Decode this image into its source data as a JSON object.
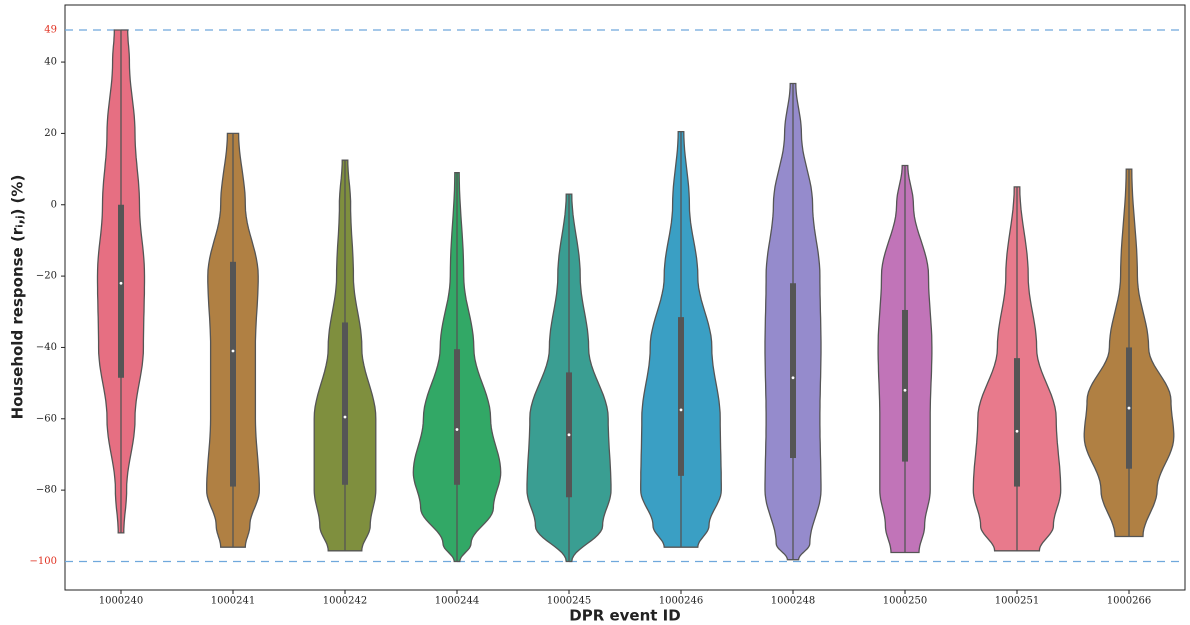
{
  "chart_data": {
    "type": "violin",
    "xlabel": "DPR event ID",
    "ylabel": "Household response (rᵢ,ⱼ) (%)",
    "categories": [
      "1000240",
      "1000241",
      "1000242",
      "1000244",
      "1000245",
      "1000246",
      "1000248",
      "1000250",
      "1000251",
      "1000266"
    ],
    "ylim": [
      -108,
      56
    ],
    "yticks": [
      40,
      20,
      0,
      {
        "value": -20,
        "label": "−20"
      },
      {
        "value": -40,
        "label": "−40"
      },
      {
        "value": -60,
        "label": "−60"
      },
      {
        "value": -80,
        "label": "−80"
      }
    ],
    "reference_lines": [
      {
        "value": 49,
        "label": "49"
      },
      {
        "value": -100,
        "label": "−100"
      }
    ],
    "reference_color": "#6fa8dc",
    "reference_label_color": "#e03020",
    "violins": [
      {
        "color": "#e66f82",
        "min": -92,
        "q1": -48.5,
        "median": -22,
        "q3": 0,
        "max": 49,
        "shape_y": [
          49,
          40,
          20,
          0,
          -20,
          -40,
          -60,
          -80,
          -92
        ],
        "shape_width": [
          0.12,
          0.15,
          0.25,
          0.33,
          0.42,
          0.4,
          0.25,
          0.1,
          0.05
        ]
      },
      {
        "color": "#b08043",
        "min": -96,
        "q1": -79,
        "median": -41,
        "q3": -16,
        "max": 20,
        "shape_y": [
          20,
          0,
          -20,
          -40,
          -60,
          -80,
          -90,
          -96
        ],
        "shape_width": [
          0.1,
          0.22,
          0.45,
          0.4,
          0.4,
          0.47,
          0.3,
          0.22
        ]
      },
      {
        "color": "#7f8f3e",
        "min": -97,
        "q1": -78.5,
        "median": -59.5,
        "q3": -33,
        "max": 12.5,
        "shape_y": [
          12.5,
          0,
          -20,
          -40,
          -60,
          -80,
          -90,
          -97
        ],
        "shape_width": [
          0.05,
          0.1,
          0.15,
          0.3,
          0.55,
          0.55,
          0.45,
          0.3
        ]
      },
      {
        "color": "#32a866",
        "min": -100,
        "q1": -78.5,
        "median": -63,
        "q3": -40.5,
        "max": 9,
        "shape_y": [
          9,
          -20,
          -40,
          -60,
          -75,
          -85,
          -95,
          -100
        ],
        "shape_width": [
          0.04,
          0.12,
          0.3,
          0.6,
          0.78,
          0.65,
          0.25,
          0.05
        ]
      },
      {
        "color": "#3a9e92",
        "min": -100,
        "q1": -82,
        "median": -64.5,
        "q3": -47,
        "max": 3,
        "shape_y": [
          3,
          -20,
          -40,
          -60,
          -80,
          -90,
          -100
        ],
        "shape_width": [
          0.05,
          0.2,
          0.35,
          0.7,
          0.75,
          0.6,
          0.05
        ]
      },
      {
        "color": "#3a9fc4",
        "min": -96,
        "q1": -76,
        "median": -57.5,
        "q3": -31.5,
        "max": 20.5,
        "shape_y": [
          20.5,
          0,
          -20,
          -40,
          -60,
          -80,
          -90,
          -96
        ],
        "shape_width": [
          0.05,
          0.15,
          0.3,
          0.55,
          0.7,
          0.72,
          0.5,
          0.3
        ]
      },
      {
        "color": "#958bcc",
        "min": -99.5,
        "q1": -71,
        "median": -48.5,
        "q3": -22,
        "max": 34,
        "shape_y": [
          34,
          20,
          0,
          -20,
          -40,
          -60,
          -80,
          -95,
          -99.5
        ],
        "shape_width": [
          0.05,
          0.15,
          0.35,
          0.48,
          0.5,
          0.48,
          0.5,
          0.3,
          0.1
        ]
      },
      {
        "color": "#c174b8",
        "min": -97.5,
        "q1": -72,
        "median": -52,
        "q3": -29.5,
        "max": 11,
        "shape_y": [
          11,
          0,
          -20,
          -40,
          -60,
          -80,
          -90,
          -97.5
        ],
        "shape_width": [
          0.05,
          0.15,
          0.42,
          0.48,
          0.45,
          0.45,
          0.35,
          0.25
        ]
      },
      {
        "color": "#e87a8c",
        "min": -97,
        "q1": -79,
        "median": -63.5,
        "q3": -43,
        "max": 5,
        "shape_y": [
          5,
          -20,
          -40,
          -60,
          -80,
          -90,
          -97
        ],
        "shape_width": [
          0.05,
          0.2,
          0.35,
          0.7,
          0.78,
          0.65,
          0.4
        ]
      },
      {
        "color": "#b08043",
        "min": -93,
        "q1": -74,
        "median": -57,
        "q3": -40,
        "max": 10,
        "shape_y": [
          10,
          -20,
          -40,
          -55,
          -65,
          -80,
          -93
        ],
        "shape_width": [
          0.05,
          0.15,
          0.35,
          0.75,
          0.8,
          0.5,
          0.25
        ]
      }
    ]
  }
}
